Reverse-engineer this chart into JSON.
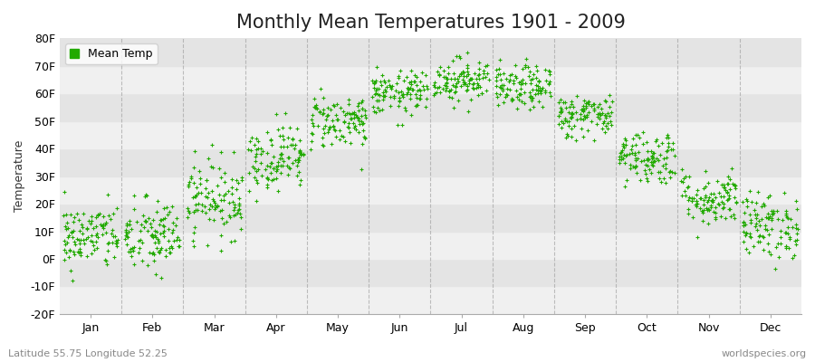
{
  "title": "Monthly Mean Temperatures 1901 - 2009",
  "ylabel": "Temperature",
  "ylim": [
    -20,
    80
  ],
  "yticks": [
    -20,
    -10,
    0,
    10,
    20,
    30,
    40,
    50,
    60,
    70,
    80
  ],
  "ytick_labels": [
    "-20F",
    "-10F",
    "0F",
    "10F",
    "20F",
    "30F",
    "40F",
    "50F",
    "60F",
    "70F",
    "80F"
  ],
  "months": [
    "Jan",
    "Feb",
    "Mar",
    "Apr",
    "May",
    "Jun",
    "Jul",
    "Aug",
    "Sep",
    "Oct",
    "Nov",
    "Dec"
  ],
  "mean_temps_F": [
    8,
    8,
    22,
    37,
    50,
    60,
    65,
    62,
    52,
    37,
    22,
    12
  ],
  "std_temps_F": [
    6,
    7,
    7,
    6,
    5,
    4,
    4,
    4,
    4,
    5,
    5,
    6
  ],
  "n_years": 109,
  "dot_color": "#22aa00",
  "dot_size": 5,
  "bg_color": "#ffffff",
  "plot_bg_color": "#f5f5f5",
  "stripe_color_light": "#f0f0f0",
  "stripe_color_dark": "#e4e4e4",
  "legend_label": "Mean Temp",
  "bottom_left_text": "Latitude 55.75 Longitude 52.25",
  "bottom_right_text": "worldspecies.org",
  "grid_color": "#999999",
  "title_fontsize": 15,
  "label_fontsize": 9,
  "tick_fontsize": 9
}
